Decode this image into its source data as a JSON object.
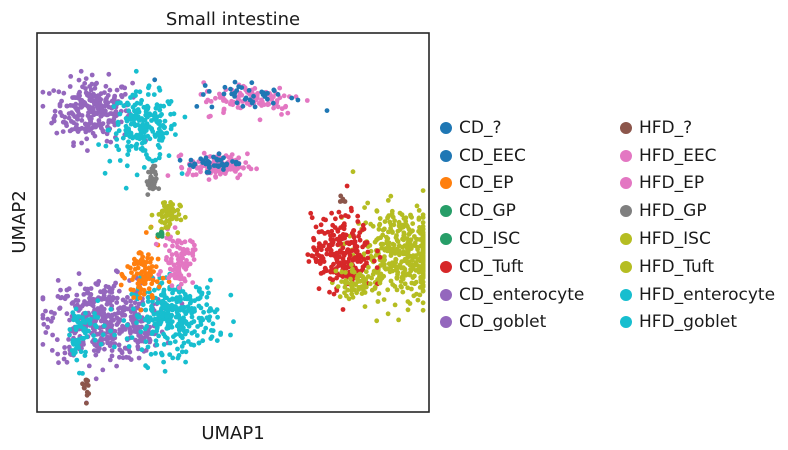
{
  "chart_data": {
    "type": "scatter",
    "title": "Small intestine",
    "xlabel": "UMAP1",
    "ylabel": "UMAP2",
    "xlim": [
      0,
      1
    ],
    "ylim": [
      0,
      1
    ],
    "grid": false,
    "legend_position": "right",
    "series": [
      {
        "name": "CD_?",
        "color": "#1f77b4",
        "col": 0
      },
      {
        "name": "CD_EEC",
        "color": "#1f77b4",
        "col": 0
      },
      {
        "name": "CD_EP",
        "color": "#ff7f0e",
        "col": 0
      },
      {
        "name": "CD_GP",
        "color": "#279e68",
        "col": 0
      },
      {
        "name": "CD_ISC",
        "color": "#279e68",
        "col": 0
      },
      {
        "name": "CD_Tuft",
        "color": "#d62728",
        "col": 0
      },
      {
        "name": "CD_enterocyte",
        "color": "#9467bd",
        "col": 0
      },
      {
        "name": "CD_goblet",
        "color": "#9467bd",
        "col": 0
      },
      {
        "name": "HFD_?",
        "color": "#8c564b",
        "col": 1
      },
      {
        "name": "HFD_EEC",
        "color": "#e377c2",
        "col": 1
      },
      {
        "name": "HFD_EP",
        "color": "#e377c2",
        "col": 1
      },
      {
        "name": "HFD_GP",
        "color": "#7f7f7f",
        "col": 1
      },
      {
        "name": "HFD_ISC",
        "color": "#b5bd22",
        "col": 1
      },
      {
        "name": "HFD_Tuft",
        "color": "#b5bd22",
        "col": 1
      },
      {
        "name": "HFD_enterocyte",
        "color": "#17becf",
        "col": 1
      },
      {
        "name": "HFD_goblet",
        "color": "#17becf",
        "col": 1
      }
    ],
    "clusters": [
      {
        "series": "CD_enterocyte",
        "cx": 0.14,
        "cy": 0.8,
        "rx": 0.09,
        "ry": 0.075,
        "n": 260
      },
      {
        "series": "HFD_enterocyte",
        "cx": 0.27,
        "cy": 0.75,
        "rx": 0.08,
        "ry": 0.085,
        "n": 200
      },
      {
        "series": "CD_enterocyte",
        "cx": 0.16,
        "cy": 0.24,
        "rx": 0.12,
        "ry": 0.1,
        "n": 380
      },
      {
        "series": "CD_goblet",
        "cx": 0.27,
        "cy": 0.21,
        "rx": 0.05,
        "ry": 0.06,
        "n": 60
      },
      {
        "series": "HFD_enterocyte",
        "cx": 0.35,
        "cy": 0.25,
        "rx": 0.1,
        "ry": 0.085,
        "n": 300
      },
      {
        "series": "HFD_goblet",
        "cx": 0.12,
        "cy": 0.22,
        "rx": 0.05,
        "ry": 0.05,
        "n": 40
      },
      {
        "series": "HFD_enterocyte",
        "cx": 0.1,
        "cy": 0.18,
        "rx": 0.02,
        "ry": 0.06,
        "n": 30
      },
      {
        "series": "CD_EP",
        "cx": 0.27,
        "cy": 0.36,
        "rx": 0.04,
        "ry": 0.08,
        "n": 90
      },
      {
        "series": "HFD_EP",
        "cx": 0.36,
        "cy": 0.4,
        "rx": 0.035,
        "ry": 0.06,
        "n": 90
      },
      {
        "series": "HFD_ISC",
        "cx": 0.33,
        "cy": 0.52,
        "rx": 0.03,
        "ry": 0.04,
        "n": 60
      },
      {
        "series": "HFD_GP",
        "cx": 0.29,
        "cy": 0.61,
        "rx": 0.012,
        "ry": 0.035,
        "n": 30
      },
      {
        "series": "HFD_EEC",
        "cx": 0.46,
        "cy": 0.65,
        "rx": 0.07,
        "ry": 0.03,
        "n": 110
      },
      {
        "series": "CD_EEC",
        "cx": 0.45,
        "cy": 0.66,
        "rx": 0.06,
        "ry": 0.02,
        "n": 40
      },
      {
        "series": "HFD_EP",
        "cx": 0.55,
        "cy": 0.83,
        "rx": 0.12,
        "ry": 0.04,
        "n": 90
      },
      {
        "series": "CD_?",
        "cx": 0.54,
        "cy": 0.84,
        "rx": 0.13,
        "ry": 0.035,
        "n": 40
      },
      {
        "series": "HFD_Tuft",
        "cx": 0.94,
        "cy": 0.42,
        "rx": 0.12,
        "ry": 0.11,
        "n": 420
      },
      {
        "series": "CD_Tuft",
        "cx": 0.78,
        "cy": 0.42,
        "rx": 0.07,
        "ry": 0.09,
        "n": 240
      },
      {
        "series": "HFD_ISC",
        "cx": 0.82,
        "cy": 0.34,
        "rx": 0.05,
        "ry": 0.04,
        "n": 60
      },
      {
        "series": "HFD_?",
        "cx": 0.12,
        "cy": 0.06,
        "rx": 0.006,
        "ry": 0.025,
        "n": 12
      },
      {
        "series": "HFD_?",
        "cx": 0.78,
        "cy": 0.56,
        "rx": 0.01,
        "ry": 0.008,
        "n": 5
      },
      {
        "series": "CD_GP",
        "cx": 0.31,
        "cy": 0.47,
        "rx": 0.01,
        "ry": 0.01,
        "n": 6
      }
    ]
  }
}
